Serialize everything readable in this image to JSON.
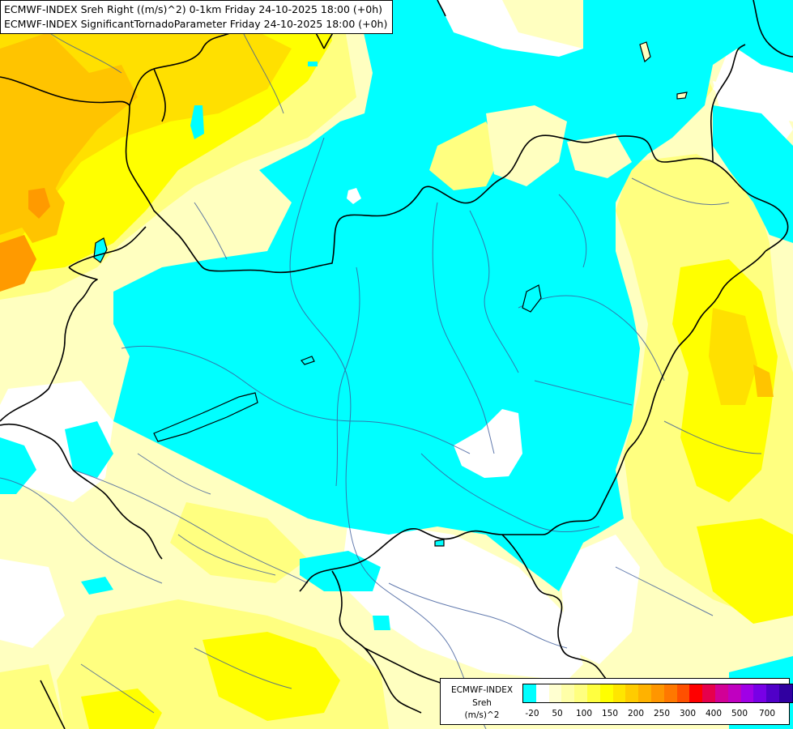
{
  "header": {
    "line1": "ECMWF-INDEX Sreh Right ((m/s)^2) 0-1km Friday 24-10-2025 18:00 (+0h)",
    "line2": "ECMWF-INDEX SignificantTornadoParameter Friday 24-10-2025 18:00 (+0h)"
  },
  "legend": {
    "product": "ECMWF-INDEX",
    "variable": "Sreh",
    "unit": "(m/s)^2",
    "colors": [
      "#00ffff",
      "#ffffff",
      "#ffffd0",
      "#ffffa8",
      "#ffff80",
      "#ffff40",
      "#ffff00",
      "#ffe600",
      "#ffcc00",
      "#ffb200",
      "#ff9600",
      "#ff7800",
      "#ff5000",
      "#ff0000",
      "#e6004c",
      "#d20096",
      "#c000c0",
      "#a000e6",
      "#7800e6",
      "#5000c8",
      "#3000a0",
      "#000080"
    ],
    "ticks": [
      "-20",
      "50",
      "100",
      "150",
      "200",
      "250",
      "300",
      "400",
      "500",
      "700"
    ]
  },
  "map": {
    "palette": {
      "cyan": "#00ffff",
      "white": "#ffffff",
      "pale": "#ffffc0",
      "light_yellow": "#ffff80",
      "yellow": "#ffff00",
      "gold": "#ffe000",
      "orange": "#ffc400",
      "deep_orange": "#ff9a00",
      "border": "#000000",
      "river": "#3c5a9a"
    },
    "icons": [
      "country-border",
      "river-network",
      "lake-outline"
    ]
  }
}
